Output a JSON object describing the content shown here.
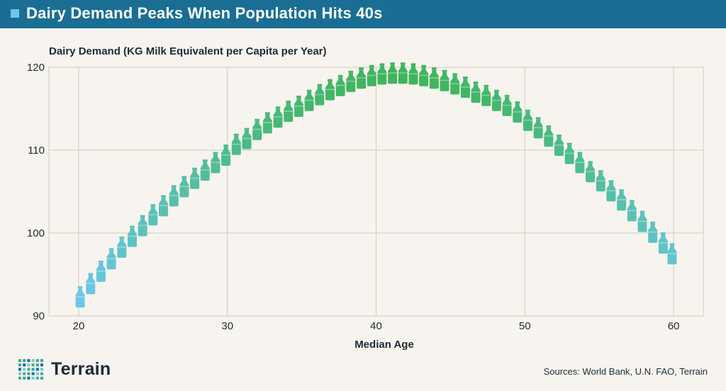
{
  "header": {
    "title": "Dairy Demand Peaks When Population Hits 40s"
  },
  "footer": {
    "sources": "Sources: World Bank, U.N. FAO, Terrain",
    "logo_text": "Terrain"
  },
  "colors": {
    "header_bg": "#1a6e94",
    "accent_square": "#6cc8ec",
    "low_color": "#6cc8ec",
    "high_color": "#3fb55c"
  },
  "chart_data": {
    "type": "scatter",
    "marker": "milk-bottle-icon",
    "xlabel": "Median Age",
    "ylabel": "Dairy Demand (KG Milk Equivalent per Capita per Year)",
    "xlim": [
      18,
      62
    ],
    "ylim": [
      90,
      120
    ],
    "xticks": [
      20,
      30,
      40,
      50,
      60
    ],
    "yticks": [
      90,
      100,
      110,
      120
    ],
    "grid": true,
    "x": [
      20.1,
      20.8,
      21.5,
      22.2,
      22.9,
      23.6,
      24.3,
      25.0,
      25.7,
      26.4,
      27.1,
      27.8,
      28.5,
      29.2,
      29.9,
      30.6,
      31.3,
      32.0,
      32.7,
      33.4,
      34.1,
      34.8,
      35.5,
      36.2,
      36.9,
      37.6,
      38.3,
      39.0,
      39.7,
      40.4,
      41.1,
      41.8,
      42.5,
      43.2,
      43.9,
      44.6,
      45.3,
      46.0,
      46.7,
      47.4,
      48.1,
      48.8,
      49.5,
      50.2,
      50.9,
      51.6,
      52.3,
      53.0,
      53.7,
      54.4,
      55.1,
      55.8,
      56.5,
      57.2,
      57.9,
      58.6,
      59.3,
      59.9
    ],
    "y": [
      92.3,
      93.9,
      95.4,
      96.9,
      98.3,
      99.6,
      100.9,
      102.2,
      103.3,
      104.5,
      105.6,
      106.6,
      107.6,
      108.5,
      109.4,
      110.7,
      111.4,
      112.5,
      113.3,
      114.0,
      114.7,
      115.3,
      116.0,
      116.7,
      117.3,
      117.8,
      118.3,
      118.7,
      119.0,
      119.2,
      119.3,
      119.3,
      119.2,
      119.0,
      118.7,
      118.4,
      118.0,
      117.6,
      117.0,
      116.6,
      116.0,
      115.4,
      114.6,
      113.6,
      112.7,
      111.7,
      110.6,
      109.6,
      108.5,
      107.4,
      106.3,
      105.1,
      104.0,
      102.7,
      101.4,
      100.1,
      98.8,
      97.5
    ]
  }
}
